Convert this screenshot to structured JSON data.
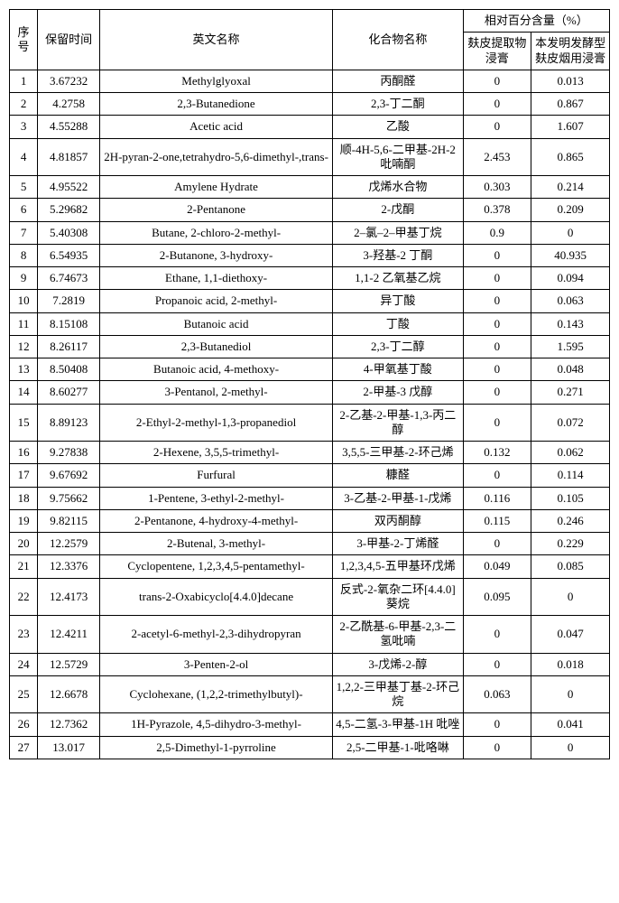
{
  "headers": {
    "idx": "序号",
    "rt": "保留时间",
    "en": "英文名称",
    "cn": "化合物名称",
    "pct_group": "相对百分含量（%）",
    "v1": "麸皮提取物浸膏",
    "v2": "本发明发酵型麸皮烟用浸膏"
  },
  "rows": [
    {
      "idx": "1",
      "rt": "3.67232",
      "en": "Methylglyoxal",
      "cn": "丙酮醛",
      "v1": "0",
      "v2": "0.013"
    },
    {
      "idx": "2",
      "rt": "4.2758",
      "en": "2,3-Butanedione",
      "cn": "2,3-丁二酮",
      "v1": "0",
      "v2": "0.867"
    },
    {
      "idx": "3",
      "rt": "4.55288",
      "en": "Acetic acid",
      "cn": "乙酸",
      "v1": "0",
      "v2": "1.607"
    },
    {
      "idx": "4",
      "rt": "4.81857",
      "en": "2H-pyran-2-one,tetrahydro-5,6-dimethyl-,trans-",
      "cn": "顺-4H-5,6-二甲基-2H-2 吡喃酮",
      "v1": "2.453",
      "v2": "0.865"
    },
    {
      "idx": "5",
      "rt": "4.95522",
      "en": "Amylene Hydrate",
      "cn": "戊烯水合物",
      "v1": "0.303",
      "v2": "0.214"
    },
    {
      "idx": "6",
      "rt": "5.29682",
      "en": "2-Pentanone",
      "cn": "2-戊酮",
      "v1": "0.378",
      "v2": "0.209"
    },
    {
      "idx": "7",
      "rt": "5.40308",
      "en": "Butane, 2-chloro-2-methyl-",
      "cn": "2–氯–2–甲基丁烷",
      "v1": "0.9",
      "v2": "0"
    },
    {
      "idx": "8",
      "rt": "6.54935",
      "en": "2-Butanone, 3-hydroxy-",
      "cn": "3-羟基-2 丁酮",
      "v1": "0",
      "v2": "40.935"
    },
    {
      "idx": "9",
      "rt": "6.74673",
      "en": "Ethane, 1,1-diethoxy-",
      "cn": "1,1-2 乙氧基乙烷",
      "v1": "0",
      "v2": "0.094"
    },
    {
      "idx": "10",
      "rt": "7.2819",
      "en": "Propanoic acid, 2-methyl-",
      "cn": "异丁酸",
      "v1": "0",
      "v2": "0.063"
    },
    {
      "idx": "11",
      "rt": "8.15108",
      "en": "Butanoic acid",
      "cn": "丁酸",
      "v1": "0",
      "v2": "0.143"
    },
    {
      "idx": "12",
      "rt": "8.26117",
      "en": "2,3-Butanediol",
      "cn": "2,3-丁二醇",
      "v1": "0",
      "v2": "1.595"
    },
    {
      "idx": "13",
      "rt": "8.50408",
      "en": "Butanoic acid, 4-methoxy-",
      "cn": "4-甲氧基丁酸",
      "v1": "0",
      "v2": "0.048"
    },
    {
      "idx": "14",
      "rt": "8.60277",
      "en": "3-Pentanol, 2-methyl-",
      "cn": "2-甲基-3 戊醇",
      "v1": "0",
      "v2": "0.271"
    },
    {
      "idx": "15",
      "rt": "8.89123",
      "en": "2-Ethyl-2-methyl-1,3-propanediol",
      "cn": "2-乙基-2-甲基-1,3-丙二醇",
      "v1": "0",
      "v2": "0.072"
    },
    {
      "idx": "16",
      "rt": "9.27838",
      "en": "2-Hexene, 3,5,5-trimethyl-",
      "cn": "3,5,5-三甲基-2-环己烯",
      "v1": "0.132",
      "v2": "0.062"
    },
    {
      "idx": "17",
      "rt": "9.67692",
      "en": "Furfural",
      "cn": "糠醛",
      "v1": "0",
      "v2": "0.114"
    },
    {
      "idx": "18",
      "rt": "9.75662",
      "en": "1-Pentene, 3-ethyl-2-methyl-",
      "cn": "3-乙基-2-甲基-1-戊烯",
      "v1": "0.116",
      "v2": "0.105"
    },
    {
      "idx": "19",
      "rt": "9.82115",
      "en": "2-Pentanone, 4-hydroxy-4-methyl-",
      "cn": "双丙酮醇",
      "v1": "0.115",
      "v2": "0.246"
    },
    {
      "idx": "20",
      "rt": "12.2579",
      "en": "2-Butenal, 3-methyl-",
      "cn": "3-甲基-2-丁烯醛",
      "v1": "0",
      "v2": "0.229"
    },
    {
      "idx": "21",
      "rt": "12.3376",
      "en": "Cyclopentene, 1,2,3,4,5-pentamethyl-",
      "cn": "1,2,3,4,5-五甲基环戊烯",
      "v1": "0.049",
      "v2": "0.085"
    },
    {
      "idx": "22",
      "rt": "12.4173",
      "en": "trans-2-Oxabicyclo[4.4.0]decane",
      "cn": "反式-2-氧杂二环[4.4.0]葵烷",
      "v1": "0.095",
      "v2": "0"
    },
    {
      "idx": "23",
      "rt": "12.4211",
      "en": "2-acetyl-6-methyl-2,3-dihydropyran",
      "cn": "2-乙酰基-6-甲基-2,3-二氢吡喃",
      "v1": "0",
      "v2": "0.047"
    },
    {
      "idx": "24",
      "rt": "12.5729",
      "en": "3-Penten-2-ol",
      "cn": "3-戊烯-2-醇",
      "v1": "0",
      "v2": "0.018"
    },
    {
      "idx": "25",
      "rt": "12.6678",
      "en": "Cyclohexane, (1,2,2-trimethylbutyl)-",
      "cn": "1,2,2-三甲基丁基-2-环己烷",
      "v1": "0.063",
      "v2": "0"
    },
    {
      "idx": "26",
      "rt": "12.7362",
      "en": "1H-Pyrazole, 4,5-dihydro-3-methyl-",
      "cn": "4,5-二氢-3-甲基-1H 吡唑",
      "v1": "0",
      "v2": "0.041"
    },
    {
      "idx": "27",
      "rt": "13.017",
      "en": "2,5-Dimethyl-1-pyrroline",
      "cn": "2,5-二甲基-1-吡咯啉",
      "v1": "0",
      "v2": "0"
    }
  ]
}
